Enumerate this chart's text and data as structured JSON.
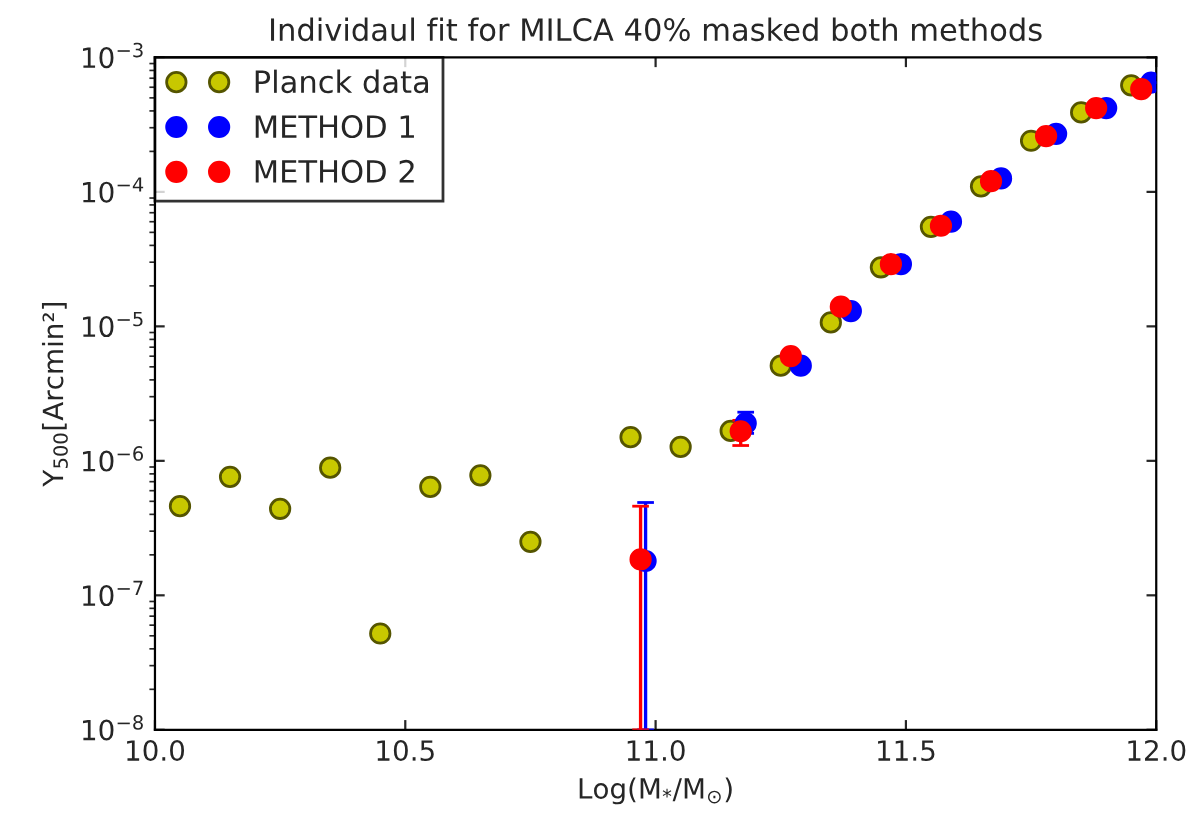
{
  "chart_data": {
    "type": "scatter",
    "title": "Individaul fit for MILCA 40% masked both methods",
    "xlabel": "Log(M$_{*}$/M$_{⊙}$)",
    "ylabel": "Y$_{500}$[Arcmin²]",
    "log": "y",
    "xlim": [
      10.0,
      12.0
    ],
    "xticks": [
      {
        "value": 10.0,
        "label": "10.0"
      },
      {
        "value": 10.5,
        "label": "10.5"
      },
      {
        "value": 11.0,
        "label": "11.0"
      },
      {
        "value": 11.5,
        "label": "11.5"
      },
      {
        "value": 12.0,
        "label": "12.0"
      }
    ],
    "ylim": [
      1e-08,
      0.001
    ],
    "yticks": [
      {
        "value": 1e-08,
        "label": "10$^{−8}$"
      },
      {
        "value": 1e-07,
        "label": "10$^{−7}$"
      },
      {
        "value": 1e-06,
        "label": "10$^{−6}$"
      },
      {
        "value": 1e-05,
        "label": "10$^{−5}$"
      },
      {
        "value": 0.0001,
        "label": "10$^{−4}$"
      },
      {
        "value": 0.001,
        "label": "10$^{−3}$"
      }
    ],
    "grid": false,
    "legend": "top left",
    "marker": "circle",
    "series": [
      {
        "name": "Planck data",
        "color": "#c8c800",
        "x": [
          10.05,
          10.15,
          10.25,
          10.35,
          10.45,
          10.55,
          10.65,
          10.75,
          10.95,
          11.05,
          11.15,
          11.25,
          11.35,
          11.45,
          11.55,
          11.65,
          11.75,
          11.85,
          11.95
        ],
        "values": [
          4.6e-07,
          7.6e-07,
          4.4e-07,
          8.9e-07,
          5.2e-08,
          6.4e-07,
          7.8e-07,
          2.5e-07,
          1.5e-06,
          1.27e-06,
          1.67e-06,
          5.1e-06,
          1.07e-05,
          2.75e-05,
          5.5e-05,
          0.00011,
          0.00024,
          0.00039,
          0.00062
        ]
      },
      {
        "name": "METHOD 1",
        "color": "#0000ff",
        "x": [
          10.98,
          11.18,
          11.29,
          11.39,
          11.49,
          11.59,
          11.69,
          11.8,
          11.9,
          11.99
        ],
        "values": [
          1.8e-07,
          1.9e-06,
          5.1e-06,
          1.3e-05,
          2.9e-05,
          6e-05,
          0.000126,
          0.00027,
          0.00042,
          0.00065
        ],
        "errors": [
          [
            1e-08,
            4.9e-07
          ],
          [
            1.6e-06,
            2.3e-06
          ],
          null,
          null,
          null,
          null,
          null,
          null,
          null,
          null
        ]
      },
      {
        "name": "METHOD 2",
        "color": "#ff0000",
        "x": [
          10.97,
          11.17,
          11.27,
          11.37,
          11.47,
          11.57,
          11.67,
          11.78,
          11.88,
          11.97
        ],
        "values": [
          1.85e-07,
          1.66e-06,
          6e-06,
          1.4e-05,
          2.9e-05,
          5.6e-05,
          0.00012,
          0.00026,
          0.00042,
          0.00058
        ],
        "errors": [
          [
            1e-08,
            4.6e-07
          ],
          [
            1.3e-06,
            2e-06
          ],
          null,
          null,
          null,
          null,
          null,
          null,
          null,
          null
        ]
      }
    ]
  }
}
